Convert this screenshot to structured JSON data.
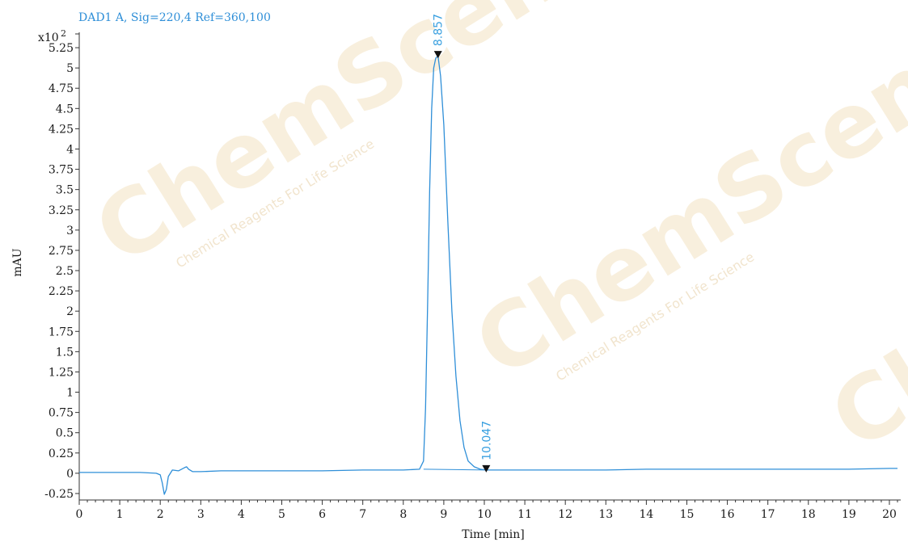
{
  "colors": {
    "trace": "#2f8fd8",
    "axis": "#333333",
    "marker": "#111111",
    "label": "#3aa0e0"
  },
  "watermark": {
    "brand": "ChemScene",
    "tagline": "Chemical Reagents For Life Science"
  },
  "chart_data": {
    "type": "line",
    "title": "DAD1 A, Sig=220,4 Ref=360,100",
    "xlabel": "Time [min]",
    "ylabel": "mAU",
    "y_multiplier": "x10",
    "y_exponent": "2",
    "xlim": [
      0,
      20.2
    ],
    "ylim": [
      -0.33,
      5.4
    ],
    "x_ticks": [
      0,
      1,
      2,
      3,
      4,
      5,
      6,
      7,
      8,
      9,
      10,
      11,
      12,
      13,
      14,
      15,
      16,
      17,
      18,
      19,
      20
    ],
    "x_tick_labels": [
      "0",
      "1",
      "2",
      "3",
      "4",
      "5",
      "6",
      "7",
      "8",
      "9",
      "10",
      "11",
      "12",
      "13",
      "14",
      "15",
      "16",
      "17",
      "18",
      "19",
      "20"
    ],
    "y_ticks": [
      -0.25,
      0,
      0.25,
      0.5,
      0.75,
      1,
      1.25,
      1.5,
      1.75,
      2,
      2.25,
      2.5,
      2.75,
      3,
      3.25,
      3.5,
      3.75,
      4,
      4.25,
      4.5,
      4.75,
      5,
      5.25
    ],
    "y_tick_labels": [
      "-0.25",
      "0",
      "0.25",
      "0.5",
      "0.75",
      "1",
      "1.25",
      "1.5",
      "1.75",
      "2",
      "2.25",
      "2.5",
      "2.75",
      "3",
      "3.25",
      "3.5",
      "3.75",
      "4",
      "4.25",
      "4.5",
      "4.75",
      "5",
      "5.25"
    ],
    "series": [
      {
        "x": [
          0,
          1,
          1.5,
          1.9,
          2.0,
          2.05,
          2.1,
          2.15,
          2.2,
          2.3,
          2.45,
          2.6,
          2.65,
          2.7,
          2.8,
          3.0,
          3.5,
          4,
          5,
          6,
          7,
          8,
          8.4,
          8.5,
          8.55,
          8.6,
          8.65,
          8.7,
          8.75,
          8.8,
          8.857,
          8.92,
          9.0,
          9.1,
          9.2,
          9.3,
          9.4,
          9.5,
          9.6,
          9.75,
          9.9,
          10.047,
          10.5,
          11,
          12,
          13,
          14,
          15,
          16,
          17,
          18,
          19,
          20,
          20.2
        ],
        "y": [
          0.01,
          0.01,
          0.01,
          0.0,
          -0.02,
          -0.12,
          -0.26,
          -0.2,
          -0.04,
          0.04,
          0.03,
          0.07,
          0.08,
          0.05,
          0.02,
          0.02,
          0.03,
          0.03,
          0.03,
          0.03,
          0.04,
          0.04,
          0.05,
          0.15,
          0.8,
          2.1,
          3.5,
          4.5,
          5.0,
          5.12,
          5.15,
          4.9,
          4.3,
          3.1,
          2.0,
          1.2,
          0.65,
          0.32,
          0.15,
          0.08,
          0.05,
          0.04,
          0.04,
          0.04,
          0.04,
          0.04,
          0.05,
          0.05,
          0.05,
          0.05,
          0.05,
          0.05,
          0.06,
          0.06
        ]
      }
    ],
    "peaks": [
      {
        "label": "8.857",
        "x": 8.857,
        "y": 5.15
      },
      {
        "label": "10.047",
        "x": 10.047,
        "y": 0.04
      }
    ]
  }
}
